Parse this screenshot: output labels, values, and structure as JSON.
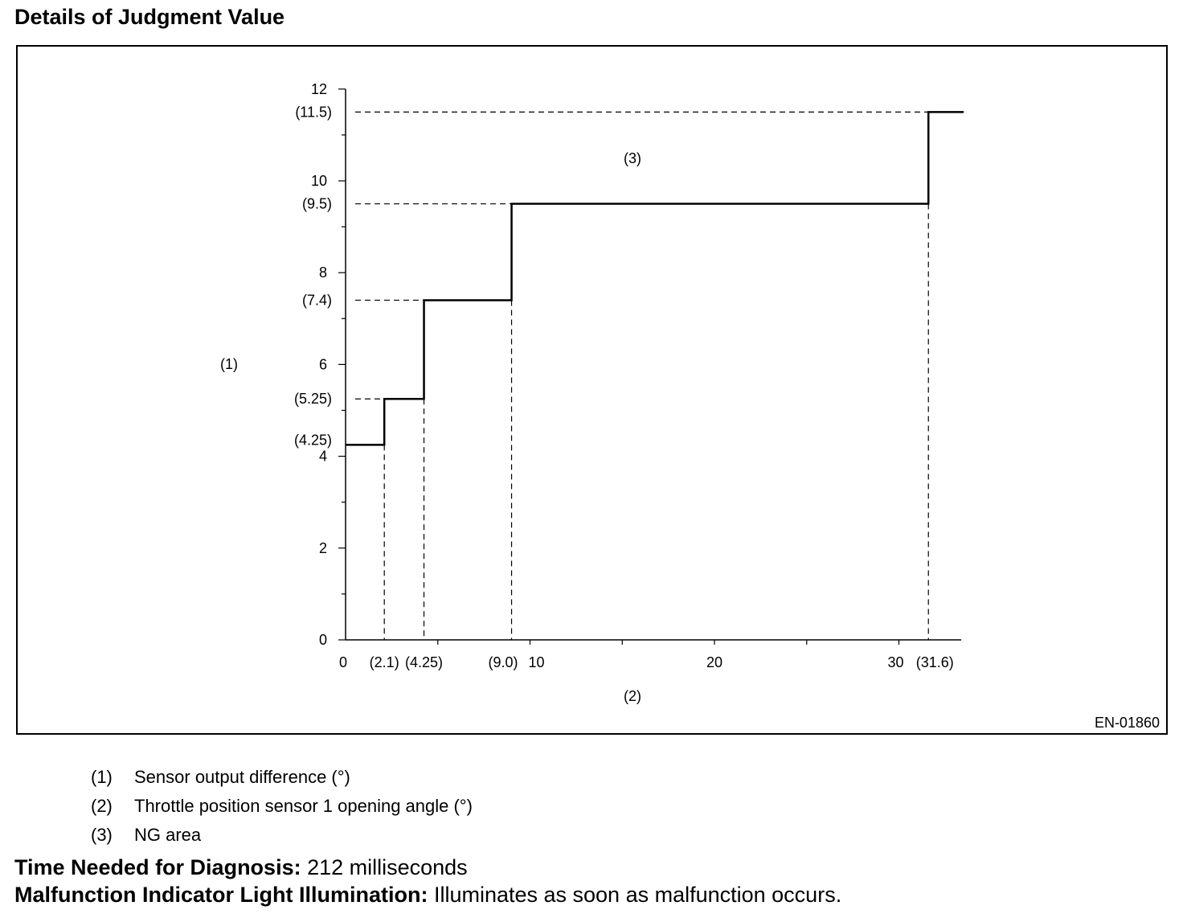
{
  "heading": "Details of Judgment Value",
  "figure_code": "EN-01860",
  "chart_data": {
    "type": "line",
    "step": true,
    "x": [
      0,
      2.1,
      4.25,
      9.0,
      31.6,
      33.6
    ],
    "y": [
      4.25,
      5.25,
      7.4,
      9.5,
      11.5,
      11.5
    ],
    "xlim": [
      0,
      33.6
    ],
    "ylim": [
      0,
      12
    ],
    "x_ticks": [
      "0",
      "10",
      "20",
      "30"
    ],
    "x_tick_values": [
      0,
      10,
      20,
      30
    ],
    "y_ticks": [
      "0",
      "2",
      "4",
      "6",
      "8",
      "10",
      "12"
    ],
    "y_tick_values": [
      0,
      2,
      4,
      6,
      8,
      10,
      12
    ],
    "x_marker_labels": [
      "(2.1)",
      "(4.25)",
      "(9.0)",
      "(31.6)"
    ],
    "x_marker_values": [
      2.1,
      4.25,
      9.0,
      31.6
    ],
    "y_marker_labels": [
      "(4.25)",
      "(5.25)",
      "(7.4)",
      "(9.5)",
      "(11.5)"
    ],
    "y_marker_values": [
      4.25,
      5.25,
      7.4,
      9.5,
      11.5
    ],
    "ylabel": "(1)",
    "xlabel": "(2)",
    "region_label": "(3)",
    "grid": false
  },
  "legend": [
    {
      "num": "(1)",
      "text": "Sensor output difference (°)"
    },
    {
      "num": "(2)",
      "text": "Throttle position sensor 1 opening angle (°)"
    },
    {
      "num": "(3)",
      "text": "NG area"
    }
  ],
  "footer": {
    "time_label": "Time Needed for Diagnosis:",
    "time_value": " 212 milliseconds",
    "mil_label": "Malfunction Indicator Light Illumination:",
    "mil_value": " Illuminates as soon as malfunction occurs."
  }
}
